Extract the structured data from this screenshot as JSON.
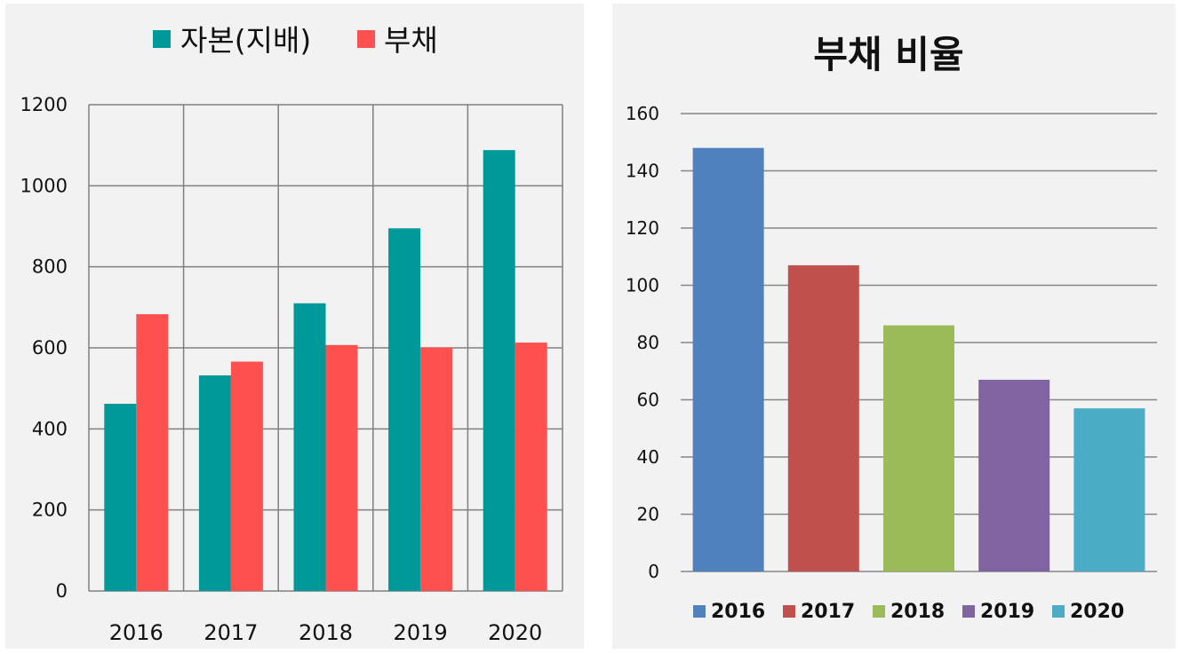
{
  "chart_data": [
    {
      "type": "bar",
      "title": "",
      "categories": [
        "2016",
        "2017",
        "2018",
        "2019",
        "2020"
      ],
      "series": [
        {
          "name": "자본(지배)",
          "values": [
            462,
            532,
            710,
            895,
            1088
          ],
          "color": "#009999"
        },
        {
          "name": "부채",
          "values": [
            683,
            566,
            607,
            601,
            613
          ],
          "color": "#ff5050"
        }
      ],
      "ylim": [
        0,
        1200
      ],
      "yticks": [
        "0",
        "200",
        "400",
        "600",
        "800",
        "1000",
        "1200"
      ],
      "grid": true,
      "legend": "top",
      "xlabel": "",
      "ylabel": ""
    },
    {
      "type": "bar",
      "title": "부채 비율",
      "categories": [
        "2016",
        "2017",
        "2018",
        "2019",
        "2020"
      ],
      "values": [
        148,
        107,
        86,
        67,
        57
      ],
      "colors": [
        "#4f81bd",
        "#c0504d",
        "#9bbb59",
        "#8064a2",
        "#4bacc6"
      ],
      "ylim": [
        0,
        160
      ],
      "yticks": [
        "0",
        "20",
        "40",
        "60",
        "80",
        "100",
        "120",
        "140",
        "160"
      ],
      "grid": true,
      "legend": "bottom",
      "xlabel": "",
      "ylabel": ""
    }
  ]
}
